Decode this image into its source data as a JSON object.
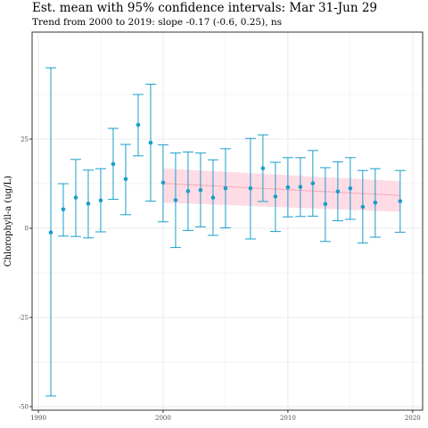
{
  "title": "Est. mean with 95% confidence intervals: Mar 31-Jun 29",
  "subtitle": "Trend from 2000 to 2019: slope -0.17 (-0.6, 0.25), ns",
  "colors": {
    "point": "#1a9ec9",
    "trend_line": "#f4a9b8",
    "trend_band": "#ffd6e0",
    "grid": "#ebebeb",
    "border": "#333333"
  },
  "chart_data": {
    "type": "scatter",
    "title": "Est. mean with 95% confidence intervals: Mar 31-Jun 29",
    "subtitle": "Trend from 2000 to 2019: slope -0.17 (-0.6, 0.25), ns",
    "xlabel": "",
    "ylabel": "Chlorophyll-a (ug/L)",
    "xlim": [
      1989.5,
      2020.8
    ],
    "ylim": [
      -51,
      55
    ],
    "x_ticks": [
      1990,
      2000,
      2010,
      2020
    ],
    "y_ticks": [
      -50,
      -25,
      0,
      25
    ],
    "grid": true,
    "series": [
      {
        "points": [
          {
            "x": 1991,
            "y": -1.2,
            "lo": -47.0,
            "hi": 45.0
          },
          {
            "x": 1992,
            "y": 5.3,
            "lo": -2.2,
            "hi": 12.5
          },
          {
            "x": 1993,
            "y": 8.6,
            "lo": -2.3,
            "hi": 19.3
          },
          {
            "x": 1994,
            "y": 6.9,
            "lo": -2.7,
            "hi": 16.3
          },
          {
            "x": 1995,
            "y": 7.8,
            "lo": -1.0,
            "hi": 16.7
          },
          {
            "x": 1996,
            "y": 18.0,
            "lo": 8.1,
            "hi": 28.0
          },
          {
            "x": 1997,
            "y": 13.8,
            "lo": 3.8,
            "hi": 23.5
          },
          {
            "x": 1998,
            "y": 29.0,
            "lo": 20.3,
            "hi": 37.5
          },
          {
            "x": 1999,
            "y": 24.0,
            "lo": 7.6,
            "hi": 40.4
          },
          {
            "x": 2000,
            "y": 12.8,
            "lo": 1.8,
            "hi": 23.4
          },
          {
            "x": 2001,
            "y": 7.9,
            "lo": -5.4,
            "hi": 21.1
          },
          {
            "x": 2002,
            "y": 10.4,
            "lo": -0.6,
            "hi": 21.4
          },
          {
            "x": 2003,
            "y": 10.7,
            "lo": 0.4,
            "hi": 21.1
          },
          {
            "x": 2004,
            "y": 8.6,
            "lo": -2.0,
            "hi": 19.2
          },
          {
            "x": 2005,
            "y": 11.2,
            "lo": 0.1,
            "hi": 22.3
          },
          {
            "x": 2007,
            "y": 11.2,
            "lo": -3.0,
            "hi": 25.2
          },
          {
            "x": 2008,
            "y": 16.8,
            "lo": 7.5,
            "hi": 26.2
          },
          {
            "x": 2009,
            "y": 8.9,
            "lo": -0.9,
            "hi": 18.5
          },
          {
            "x": 2010,
            "y": 11.5,
            "lo": 3.2,
            "hi": 19.8
          },
          {
            "x": 2011,
            "y": 11.6,
            "lo": 3.3,
            "hi": 19.8
          },
          {
            "x": 2012,
            "y": 12.6,
            "lo": 3.4,
            "hi": 21.8
          },
          {
            "x": 2013,
            "y": 6.8,
            "lo": -3.7,
            "hi": 17.0
          },
          {
            "x": 2014,
            "y": 10.3,
            "lo": 2.1,
            "hi": 18.6
          },
          {
            "x": 2015,
            "y": 11.2,
            "lo": 2.5,
            "hi": 19.8
          },
          {
            "x": 2016,
            "y": 6.0,
            "lo": -4.1,
            "hi": 16.2
          },
          {
            "x": 2017,
            "y": 7.2,
            "lo": -2.5,
            "hi": 16.7
          },
          {
            "x": 2019,
            "y": 7.6,
            "lo": -1.1,
            "hi": 16.2
          }
        ]
      }
    ],
    "trend": {
      "x": [
        2000,
        2019
      ],
      "y": [
        12.6,
        9.2
      ],
      "band_lo": [
        7.2,
        4.6
      ],
      "band_hi": [
        16.8,
        13.2
      ]
    }
  }
}
